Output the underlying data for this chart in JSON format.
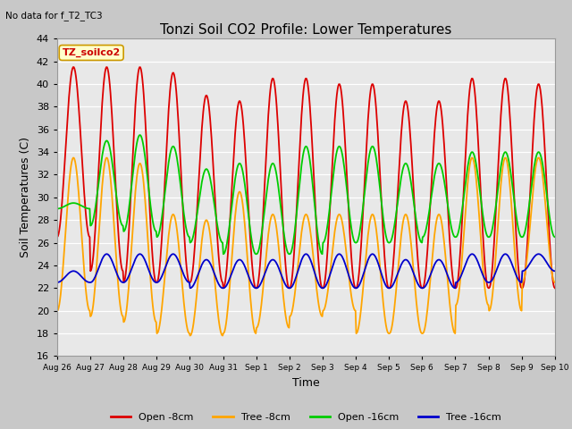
{
  "title": "Tonzi Soil CO2 Profile: Lower Temperatures",
  "subtitle": "No data for f_T2_TC3",
  "xlabel": "Time",
  "ylabel": "Soil Temperatures (C)",
  "ylim": [
    16,
    44
  ],
  "yticks": [
    16,
    18,
    20,
    22,
    24,
    26,
    28,
    30,
    32,
    34,
    36,
    38,
    40,
    42,
    44
  ],
  "fig_bg_color": "#c8c8c8",
  "plot_bg_color": "#e8e8e8",
  "legend_label": "TZ_soilco2",
  "series": {
    "open_8cm": {
      "color": "#dd0000",
      "label": "Open -8cm"
    },
    "tree_8cm": {
      "color": "#ffa500",
      "label": "Tree -8cm"
    },
    "open_16cm": {
      "color": "#00cc00",
      "label": "Open -16cm"
    },
    "tree_16cm": {
      "color": "#0000cc",
      "label": "Tree -16cm"
    }
  },
  "xtick_labels": [
    "Aug 26",
    "Aug 27",
    "Aug 28",
    "Aug 29",
    "Aug 30",
    "Aug 31",
    "Sep 1",
    "Sep 2",
    "Sep 3",
    "Sep 4",
    "Sep 5",
    "Sep 6",
    "Sep 7",
    "Sep 8",
    "Sep 9",
    "Sep 10"
  ],
  "num_days": 15,
  "open_8_peaks": [
    41.5,
    41.5,
    41.5,
    41.0,
    39.0,
    38.5,
    40.5,
    40.5,
    40.0,
    40.0,
    38.5,
    38.5,
    40.5,
    40.5,
    40.0
  ],
  "open_8_troughs": [
    26.5,
    23.5,
    22.5,
    22.5,
    22.5,
    22.0,
    22.0,
    22.0,
    22.0,
    22.0,
    22.0,
    22.0,
    22.0,
    22.0,
    22.0
  ],
  "tree_8_peaks": [
    33.5,
    33.5,
    33.0,
    28.5,
    28.0,
    30.5,
    28.5,
    28.5,
    28.5,
    28.5,
    28.5,
    28.5,
    33.5,
    33.5,
    33.5
  ],
  "tree_8_troughs": [
    20.0,
    19.5,
    19.0,
    18.0,
    17.8,
    18.0,
    18.5,
    19.5,
    20.0,
    18.0,
    18.0,
    18.0,
    20.5,
    20.0,
    22.5
  ],
  "open_16_peaks": [
    29.5,
    35.0,
    35.5,
    34.5,
    32.5,
    33.0,
    33.0,
    34.5,
    34.5,
    34.5,
    33.0,
    33.0,
    34.0,
    34.0,
    34.0
  ],
  "open_16_troughs": [
    29.0,
    27.5,
    27.0,
    26.5,
    26.0,
    25.0,
    25.0,
    25.0,
    26.0,
    26.0,
    26.0,
    26.5,
    26.5,
    26.5,
    26.5
  ],
  "tree_16_peaks": [
    23.5,
    25.0,
    25.0,
    25.0,
    24.5,
    24.5,
    24.5,
    25.0,
    25.0,
    25.0,
    24.5,
    24.5,
    25.0,
    25.0,
    25.0
  ],
  "tree_16_troughs": [
    22.5,
    22.5,
    22.5,
    22.5,
    22.0,
    22.0,
    22.0,
    22.0,
    22.0,
    22.0,
    22.0,
    22.0,
    22.5,
    22.5,
    23.5
  ]
}
